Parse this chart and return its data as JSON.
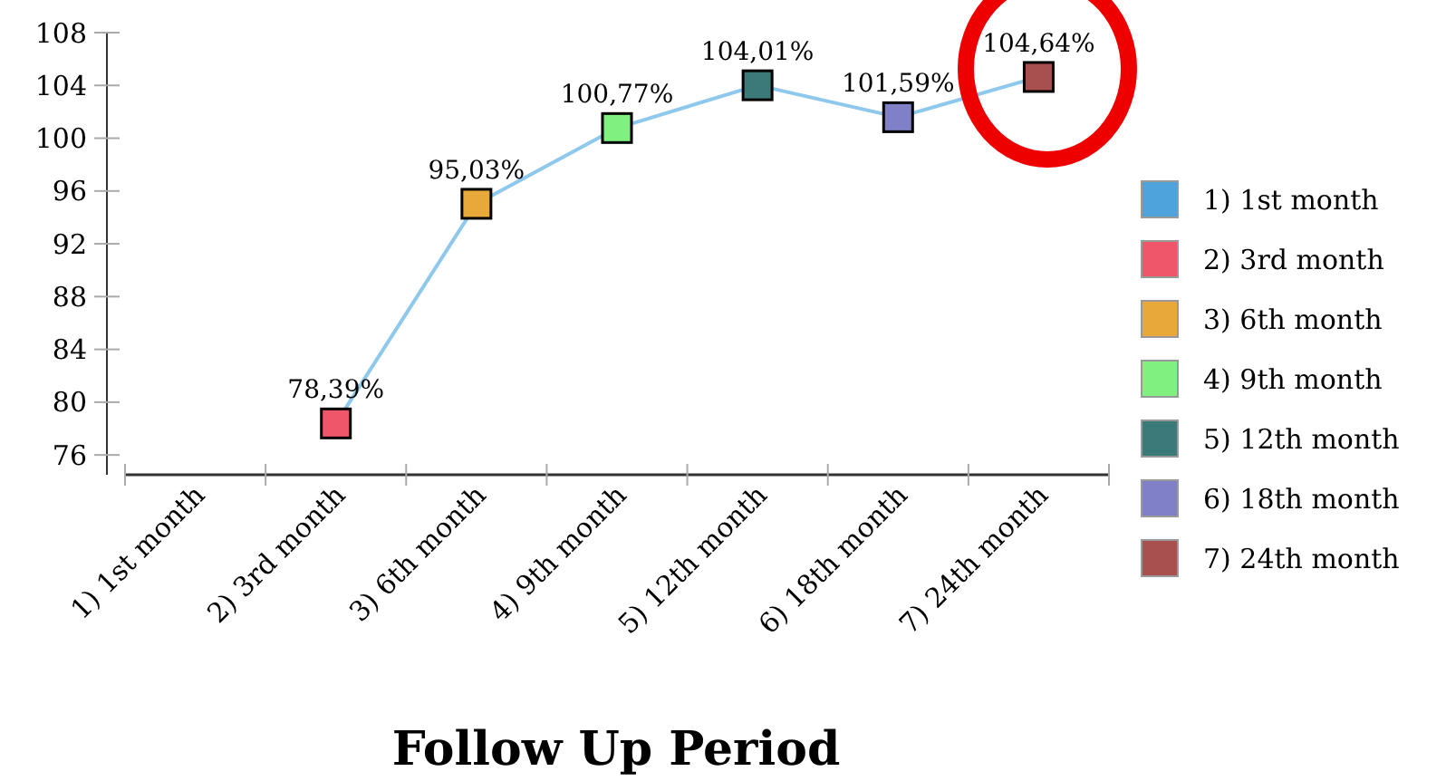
{
  "chart_data": {
    "type": "line",
    "xlabel": "Follow Up Period",
    "categories": [
      "1) 1st month",
      "2) 3rd month",
      "3) 6th month",
      "4) 9th month",
      "5) 12th month",
      "6) 18th month",
      "7) 24th month"
    ],
    "series": [
      {
        "color": "#8ec8ec",
        "marker": "none",
        "values": [
          null,
          78.39,
          95.03,
          100.77,
          104.01,
          101.59,
          104.64
        ],
        "value_labels": [
          null,
          "78,39%",
          "95,03%",
          "100,77%",
          "104,01%",
          "101,59%",
          "104,64%"
        ]
      },
      {
        "type": "scatter",
        "name": "1) 1st month",
        "color": "#4fa3dc",
        "marker": "square",
        "values": [
          null,
          null,
          null,
          null,
          null,
          null,
          null
        ]
      },
      {
        "type": "scatter",
        "name": "2) 3rd month",
        "color": "#f0566a",
        "marker": "square",
        "values": [
          null,
          78.39,
          null,
          null,
          null,
          null,
          null
        ]
      },
      {
        "type": "scatter",
        "name": "3) 6th month",
        "color": "#e8a83a",
        "marker": "square",
        "values": [
          null,
          null,
          95.03,
          null,
          null,
          null,
          null
        ]
      },
      {
        "type": "scatter",
        "name": "4) 9th month",
        "color": "#80f080",
        "marker": "square",
        "values": [
          null,
          null,
          null,
          100.77,
          null,
          null,
          null
        ]
      },
      {
        "type": "scatter",
        "name": "5) 12th month",
        "color": "#3a7a78",
        "marker": "square",
        "values": [
          null,
          null,
          null,
          null,
          104.01,
          null,
          null
        ]
      },
      {
        "type": "scatter",
        "name": "6) 18th month",
        "color": "#8080c8",
        "marker": "square",
        "values": [
          null,
          null,
          null,
          null,
          null,
          101.59,
          null
        ]
      },
      {
        "type": "scatter",
        "name": "7) 24th month",
        "color": "#a85050",
        "marker": "square",
        "values": [
          null,
          null,
          null,
          null,
          null,
          null,
          104.64
        ]
      }
    ],
    "ylim": [
      74.5,
      108
    ],
    "yticks": [
      76,
      80,
      84,
      88,
      92,
      96,
      100,
      104,
      108
    ],
    "grid": false,
    "legend": "right",
    "line_style": "solid"
  }
}
